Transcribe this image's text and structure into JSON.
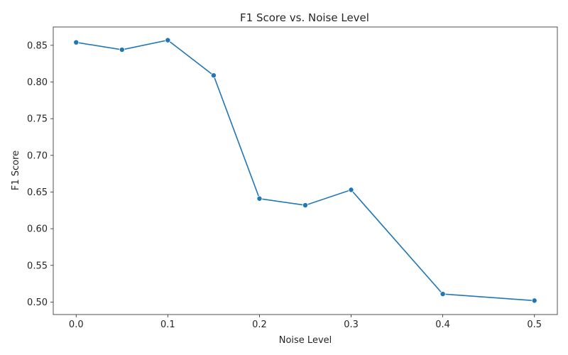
{
  "chart_data": {
    "type": "line",
    "title": "F1 Score vs. Noise Level",
    "xlabel": "Noise Level",
    "ylabel": "F1 Score",
    "xlim": [
      -0.025,
      0.525
    ],
    "ylim": [
      0.483,
      0.875
    ],
    "xticks": [
      0.0,
      0.1,
      0.2,
      0.3,
      0.4,
      0.5
    ],
    "xtick_labels": [
      "0.0",
      "0.1",
      "0.2",
      "0.3",
      "0.4",
      "0.5"
    ],
    "yticks": [
      0.5,
      0.55,
      0.6,
      0.65,
      0.7,
      0.75,
      0.8,
      0.85
    ],
    "ytick_labels": [
      "0.50",
      "0.55",
      "0.60",
      "0.65",
      "0.70",
      "0.75",
      "0.80",
      "0.85"
    ],
    "grid": false,
    "series": [
      {
        "name": "F1 Score",
        "color": "#1f77b4",
        "x": [
          0.0,
          0.05,
          0.1,
          0.15,
          0.2,
          0.25,
          0.3,
          0.4,
          0.5
        ],
        "y": [
          0.854,
          0.844,
          0.857,
          0.809,
          0.641,
          0.632,
          0.653,
          0.511,
          0.502
        ]
      }
    ]
  }
}
